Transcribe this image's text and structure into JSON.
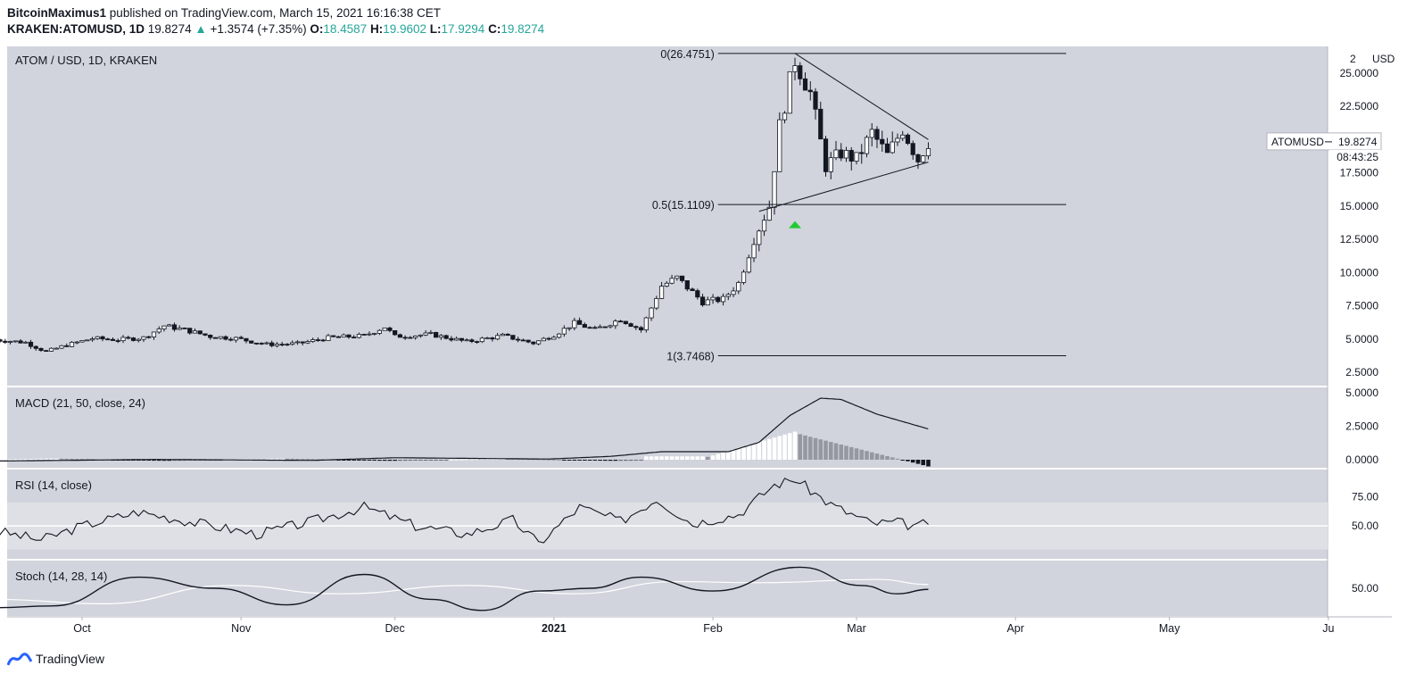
{
  "header": {
    "author": "BitcoinMaximus1",
    "published_text": "published on TradingView.com, March 15, 2021 16:16:38 CET",
    "symbol": "KRAKEN:ATOMUSD, 1D",
    "last": "19.8274",
    "change": "+1.3574 (+7.35%)",
    "o_label": "O:",
    "o": "18.4587",
    "h_label": "H:",
    "h": "19.9602",
    "l_label": "L:",
    "l": "17.9294",
    "c_label": "C:",
    "c": "19.8274"
  },
  "footer": {
    "brand": "TradingView"
  },
  "colors": {
    "pane_bg": "#d1d4dc",
    "rsi_band": "#dee0e5",
    "up_candle": "#ffffff",
    "down_candle": "#131722",
    "triangle_marker": "#22c933",
    "axis_text": "#131722"
  },
  "chart_data": {
    "main": {
      "type": "candlestick",
      "title": "ATOM / USD, 1D, KRAKEN",
      "price_axis_label": "USD",
      "price_axis_top": "2",
      "ylim": [
        1.5,
        27.0
      ],
      "y_ticks": [
        "25.0000",
        "22.5000",
        "20.0000",
        "17.5000",
        "15.0000",
        "12.5000",
        "10.0000",
        "7.5000",
        "5.0000",
        "2.5000"
      ],
      "y_tick_values": [
        25,
        22.5,
        20,
        17.5,
        15,
        12.5,
        10,
        7.5,
        5,
        2.5
      ],
      "x_ticks": [
        "Oct",
        "Nov",
        "Dec",
        "2021",
        "Feb",
        "Mar",
        "Apr",
        "May",
        "Ju"
      ],
      "price_tag": {
        "symbol": "ATOMUSD",
        "value": "19.8274",
        "countdown": "08:43:25"
      },
      "fib_levels": [
        {
          "label": "0(26.4751)",
          "value": 26.4751
        },
        {
          "label": "0.5(15.1109)",
          "value": 15.1109
        },
        {
          "label": "1(3.7468)",
          "value": 3.7468
        }
      ],
      "close_path": [
        [
          "2020-09-14",
          4.95
        ],
        [
          "2020-09-20",
          4.75
        ],
        [
          "2020-09-24",
          4.05
        ],
        [
          "2020-09-28",
          4.55
        ],
        [
          "2020-10-03",
          5.05
        ],
        [
          "2020-10-08",
          4.95
        ],
        [
          "2020-10-13",
          5.1
        ],
        [
          "2020-10-17",
          6.0
        ],
        [
          "2020-10-21",
          5.7
        ],
        [
          "2020-10-26",
          5.2
        ],
        [
          "2020-10-31",
          5.05
        ],
        [
          "2020-11-06",
          4.6
        ],
        [
          "2020-11-12",
          4.65
        ],
        [
          "2020-11-18",
          5.1
        ],
        [
          "2020-11-25",
          5.25
        ],
        [
          "2020-11-29",
          5.9
        ],
        [
          "2020-12-01",
          5.2
        ],
        [
          "2020-12-08",
          5.35
        ],
        [
          "2020-12-15",
          4.8
        ],
        [
          "2020-12-22",
          5.25
        ],
        [
          "2020-12-28",
          4.7
        ],
        [
          "2021-01-01",
          5.3
        ],
        [
          "2021-01-05",
          6.2
        ],
        [
          "2021-01-09",
          5.7
        ],
        [
          "2021-01-14",
          6.5
        ],
        [
          "2021-01-18",
          5.7
        ],
        [
          "2021-01-22",
          9.0
        ],
        [
          "2021-01-25",
          9.6
        ],
        [
          "2021-01-30",
          7.8
        ],
        [
          "2021-02-03",
          8.0
        ],
        [
          "2021-02-06",
          9.2
        ],
        [
          "2021-02-09",
          12.5
        ],
        [
          "2021-02-12",
          15.0
        ],
        [
          "2021-02-14",
          21.0
        ],
        [
          "2021-02-17",
          26.0
        ],
        [
          "2021-02-20",
          23.5
        ],
        [
          "2021-02-23",
          18.0
        ],
        [
          "2021-02-26",
          19.0
        ],
        [
          "2021-03-01",
          18.5
        ],
        [
          "2021-03-04",
          20.5
        ],
        [
          "2021-03-07",
          18.8
        ],
        [
          "2021-03-10",
          20.8
        ],
        [
          "2021-03-13",
          18.5
        ],
        [
          "2021-03-15",
          19.8274
        ]
      ],
      "triangle_upper": [
        [
          "2021-02-17",
          26.4751
        ],
        [
          "2021-03-15",
          20.0
        ]
      ],
      "triangle_lower": [
        [
          "2021-02-10",
          14.6
        ],
        [
          "2021-03-15",
          18.3
        ]
      ],
      "breakout_marker": {
        "date": "2021-02-17",
        "value": 13.6
      }
    },
    "macd": {
      "title": "MACD (21, 50, close, 24)",
      "y_ticks": [
        "5.0000",
        "2.5000",
        "0.0000"
      ],
      "y_tick_values": [
        5,
        2.5,
        0
      ],
      "ylim": [
        -0.6,
        5.4
      ],
      "macd_line": [
        [
          "2020-09-14",
          -0.1
        ],
        [
          "2020-10-15",
          0.02
        ],
        [
          "2020-11-15",
          -0.05
        ],
        [
          "2020-12-01",
          0.15
        ],
        [
          "2020-12-31",
          0.05
        ],
        [
          "2021-01-12",
          0.25
        ],
        [
          "2021-01-22",
          0.6
        ],
        [
          "2021-02-04",
          0.6
        ],
        [
          "2021-02-10",
          1.3
        ],
        [
          "2021-02-16",
          3.3
        ],
        [
          "2021-02-22",
          4.6
        ],
        [
          "2021-02-26",
          4.5
        ],
        [
          "2021-03-05",
          3.4
        ],
        [
          "2021-03-15",
          2.3
        ]
      ],
      "histogram_peak": 2.0
    },
    "rsi": {
      "title": "RSI (14, close)",
      "y_ticks": [
        "75.00",
        "50.00"
      ],
      "y_tick_values": [
        75,
        50
      ],
      "band": [
        30,
        70
      ],
      "ylim": [
        22,
        98
      ],
      "values": [
        [
          "2020-09-14",
          46
        ],
        [
          "2020-09-23",
          38
        ],
        [
          "2020-10-01",
          50
        ],
        [
          "2020-10-12",
          62
        ],
        [
          "2020-10-24",
          52
        ],
        [
          "2020-11-04",
          43
        ],
        [
          "2020-11-14",
          53
        ],
        [
          "2020-11-25",
          66
        ],
        [
          "2020-12-05",
          50
        ],
        [
          "2020-12-15",
          43
        ],
        [
          "2020-12-24",
          55
        ],
        [
          "2020-12-29",
          35
        ],
        [
          "2021-01-06",
          66
        ],
        [
          "2021-01-14",
          54
        ],
        [
          "2021-01-21",
          73
        ],
        [
          "2021-01-28",
          52
        ],
        [
          "2021-02-06",
          60
        ],
        [
          "2021-02-13",
          85
        ],
        [
          "2021-02-17",
          90
        ],
        [
          "2021-02-24",
          68
        ],
        [
          "2021-03-04",
          52
        ],
        [
          "2021-03-09",
          53
        ],
        [
          "2021-03-13",
          49
        ],
        [
          "2021-03-15",
          54
        ]
      ]
    },
    "stoch": {
      "title": "Stoch (14, 28, 14)",
      "y_ticks": [
        "50.00"
      ],
      "y_tick_values": [
        50
      ],
      "ylim": [
        0,
        100
      ],
      "k": [
        [
          "2020-09-14",
          15
        ],
        [
          "2020-09-25",
          18
        ],
        [
          "2020-10-12",
          70
        ],
        [
          "2020-10-27",
          50
        ],
        [
          "2020-11-10",
          20
        ],
        [
          "2020-11-25",
          75
        ],
        [
          "2020-12-08",
          30
        ],
        [
          "2020-12-18",
          10
        ],
        [
          "2020-12-29",
          45
        ],
        [
          "2021-01-08",
          50
        ],
        [
          "2021-01-18",
          70
        ],
        [
          "2021-02-01",
          45
        ],
        [
          "2021-02-18",
          88
        ],
        [
          "2021-03-02",
          55
        ],
        [
          "2021-03-09",
          40
        ],
        [
          "2021-03-15",
          48
        ]
      ],
      "d": [
        [
          "2020-09-14",
          30
        ],
        [
          "2020-10-05",
          22
        ],
        [
          "2020-10-30",
          55
        ],
        [
          "2020-11-20",
          40
        ],
        [
          "2020-12-15",
          55
        ],
        [
          "2021-01-05",
          40
        ],
        [
          "2021-01-25",
          62
        ],
        [
          "2021-02-10",
          60
        ],
        [
          "2021-03-05",
          66
        ],
        [
          "2021-03-15",
          57
        ]
      ]
    }
  }
}
